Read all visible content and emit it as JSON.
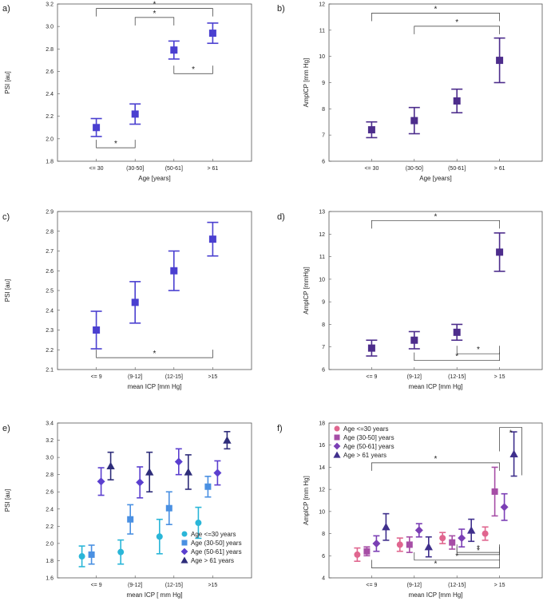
{
  "colors": {
    "blue": "#4a3fd0",
    "purple": "#4d2d8c",
    "c1": "#2ab6d8",
    "c2": "#4a90e2",
    "c3": "#5b3fcf",
    "c4": "#2e2d7a",
    "f1": "#e0668f",
    "f2": "#a64ea6",
    "f3": "#7b3fb5",
    "f4": "#3f2f8c"
  },
  "chart_data": [
    {
      "id": "a",
      "label": "a)",
      "type": "scatter",
      "categories": [
        "<= 30",
        "(30-50]",
        "(50-61]",
        "> 61"
      ],
      "xlabel": "Age [years]",
      "ylabel": "PSI [au]",
      "ylim": [
        1.8,
        3.2
      ],
      "yticks": [
        "1.8",
        "2.0",
        "2.2",
        "2.4",
        "2.6",
        "2.8",
        "3.0",
        "3.2"
      ],
      "series": [
        {
          "name": "PSI",
          "color": "blue",
          "marker": "square",
          "values": [
            2.1,
            2.22,
            2.79,
            2.94
          ],
          "errors": [
            0.08,
            0.09,
            0.08,
            0.09
          ]
        }
      ],
      "significance": [
        {
          "from": 0,
          "to": 1,
          "y": 1.92,
          "star": "*",
          "dir": "down"
        },
        {
          "from": 0,
          "to": 3,
          "y": 3.16,
          "star": "*",
          "dir": "up"
        },
        {
          "from": 1,
          "to": 2,
          "y": 3.08,
          "star": "*",
          "dir": "up"
        },
        {
          "from": 2,
          "to": 3,
          "y": 2.58,
          "star": "*",
          "dir": "down"
        }
      ]
    },
    {
      "id": "b",
      "label": "b)",
      "type": "scatter",
      "categories": [
        "<= 30",
        "(30-50]",
        "(50-61]",
        "> 61"
      ],
      "xlabel": "Age [years]",
      "ylabel": "AmplCP [mm Hg]",
      "ylim": [
        6,
        12
      ],
      "yticks": [
        "6",
        "7",
        "8",
        "9",
        "10",
        "11",
        "12"
      ],
      "series": [
        {
          "name": "AmplCP",
          "color": "purple",
          "marker": "square",
          "values": [
            7.2,
            7.55,
            8.3,
            9.85
          ],
          "errors": [
            0.3,
            0.5,
            0.45,
            0.85
          ]
        }
      ],
      "significance": [
        {
          "from": 0,
          "to": 3,
          "y": 11.65,
          "star": "*",
          "dir": "up"
        },
        {
          "from": 1,
          "to": 3,
          "y": 11.15,
          "star": "*",
          "dir": "up"
        }
      ]
    },
    {
      "id": "c",
      "label": "c)",
      "type": "scatter",
      "categories": [
        "<= 9",
        "(9-12]",
        "(12-15]",
        ">15"
      ],
      "xlabel": "mean ICP [mm Hg]",
      "ylabel": "PSI [au]",
      "ylim": [
        2.1,
        2.9
      ],
      "yticks": [
        "2.1",
        "2.2",
        "2.3",
        "2.4",
        "2.5",
        "2.6",
        "2.7",
        "2.8",
        "2.9"
      ],
      "series": [
        {
          "name": "PSI",
          "color": "blue",
          "marker": "square",
          "values": [
            2.3,
            2.44,
            2.6,
            2.76
          ],
          "errors": [
            0.095,
            0.105,
            0.1,
            0.085
          ]
        }
      ],
      "significance": [
        {
          "from": 0,
          "to": 3,
          "y": 2.16,
          "star": "*",
          "dir": "down"
        }
      ]
    },
    {
      "id": "d",
      "label": "d)",
      "type": "scatter",
      "categories": [
        "<= 9",
        "(9-12]",
        "(12-15]",
        "> 15"
      ],
      "xlabel": "mean ICP [mm Hg]",
      "ylabel": "AmplCP [mmHg]",
      "ylim": [
        6,
        13
      ],
      "yticks": [
        "6",
        "7",
        "8",
        "9",
        "10",
        "11",
        "12",
        "13"
      ],
      "series": [
        {
          "name": "AmplCP",
          "color": "purple",
          "marker": "square",
          "values": [
            6.95,
            7.3,
            7.65,
            11.2
          ],
          "errors": [
            0.35,
            0.38,
            0.35,
            0.85
          ]
        }
      ],
      "significance": [
        {
          "from": 0,
          "to": 3,
          "y": 12.6,
          "star": "*",
          "dir": "up"
        },
        {
          "from": 2,
          "to": 3,
          "y": 6.7,
          "star": "*",
          "dir": "down"
        },
        {
          "from": 1,
          "to": 3,
          "y": 6.4,
          "star": "*",
          "dir": "down"
        }
      ]
    },
    {
      "id": "e",
      "label": "e)",
      "type": "scatter",
      "categories": [
        "<= 9",
        "(9-12]",
        "(12-15]",
        ">15"
      ],
      "xlabel": "mean ICP [ mm Hg]",
      "ylabel": "PSI [au]",
      "ylim": [
        1.6,
        3.4
      ],
      "yticks": [
        "1.6",
        "1.8",
        "2.0",
        "2.2",
        "2.4",
        "2.6",
        "2.8",
        "3.0",
        "3.2",
        "3.4"
      ],
      "legend": "bottom-right",
      "series": [
        {
          "name": "Age <=30 years",
          "color": "c1",
          "marker": "circle",
          "values": [
            1.85,
            1.9,
            2.08,
            2.24
          ],
          "errors": [
            0.12,
            0.14,
            0.2,
            0.18
          ]
        },
        {
          "name": "Age (30-50] years",
          "color": "c2",
          "marker": "square",
          "values": [
            1.87,
            2.28,
            2.41,
            2.66
          ],
          "errors": [
            0.11,
            0.17,
            0.19,
            0.12
          ]
        },
        {
          "name": "Age (50-61] years",
          "color": "c3",
          "marker": "diamond",
          "values": [
            2.72,
            2.71,
            2.95,
            2.82
          ],
          "errors": [
            0.16,
            0.18,
            0.15,
            0.14
          ]
        },
        {
          "name": "Age > 61 years",
          "color": "c4",
          "marker": "triangle",
          "values": [
            2.9,
            2.83,
            2.83,
            3.2
          ],
          "errors": [
            0.16,
            0.23,
            0.2,
            0.1
          ]
        }
      ]
    },
    {
      "id": "f",
      "label": "f)",
      "type": "scatter",
      "categories": [
        "<= 9",
        "(9-12]",
        "(12-15]",
        "> 15"
      ],
      "xlabel": "mean ICP [mm Hg]",
      "ylabel": "AmplCP [mm Hg]",
      "ylim": [
        4,
        18
      ],
      "yticks": [
        "4",
        "6",
        "8",
        "10",
        "12",
        "14",
        "16",
        "18"
      ],
      "legend": "top-left",
      "series": [
        {
          "name": "Age <=30 years",
          "color": "f1",
          "marker": "circle",
          "values": [
            6.1,
            7.0,
            7.6,
            8.0
          ],
          "errors": [
            0.6,
            0.6,
            0.5,
            0.6
          ]
        },
        {
          "name": "Age (30-50] years",
          "color": "f2",
          "marker": "square",
          "values": [
            6.4,
            7.0,
            7.2,
            11.8
          ],
          "errors": [
            0.4,
            0.7,
            0.6,
            2.2
          ]
        },
        {
          "name": "Age (50-61] years",
          "color": "f3",
          "marker": "diamond",
          "values": [
            7.1,
            8.3,
            7.6,
            10.4
          ],
          "errors": [
            0.7,
            0.6,
            0.8,
            1.2
          ]
        },
        {
          "name": "Age > 61 years",
          "color": "f4",
          "marker": "triangle",
          "values": [
            8.6,
            6.8,
            8.3,
            15.2
          ],
          "errors": [
            1.2,
            0.9,
            1.0,
            2.0
          ]
        }
      ],
      "significance": [
        {
          "from": 0,
          "to": 3,
          "y": 14.4,
          "star": "*",
          "dir": "up"
        },
        {
          "from": 3,
          "to": 3,
          "y": 17.6,
          "star": "*",
          "dir": "up"
        },
        {
          "from": 2,
          "to": 3,
          "y": 6.3,
          "star": "*",
          "dir": "down"
        },
        {
          "from": 2,
          "to": 3,
          "y": 6.1,
          "star": "*",
          "dir": "down"
        },
        {
          "from": 1,
          "to": 3,
          "y": 5.6,
          "star": "*",
          "dir": "down"
        },
        {
          "from": 0,
          "to": 3,
          "y": 4.9,
          "star": "*",
          "dir": "down"
        }
      ]
    }
  ]
}
